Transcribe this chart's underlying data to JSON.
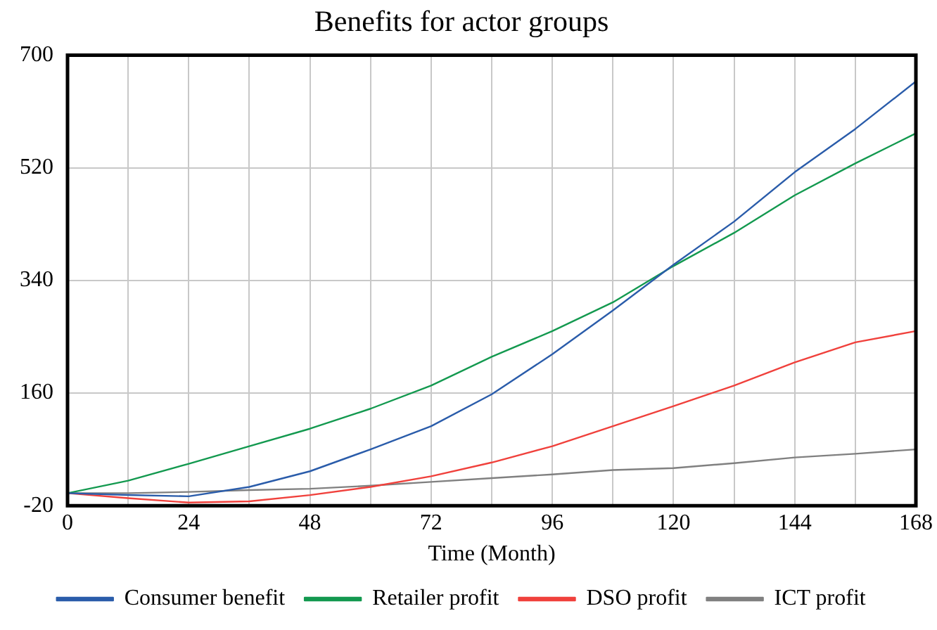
{
  "chart_data": {
    "type": "line",
    "title": "Benefits for actor groups",
    "xlabel": "Time (Month)",
    "x": [
      0,
      12,
      24,
      36,
      48,
      60,
      72,
      84,
      96,
      108,
      120,
      132,
      144,
      156,
      168
    ],
    "series": [
      {
        "name": "Consumer benefit",
        "color": "#2a5caa",
        "values": [
          0,
          -3,
          -5,
          10,
          35,
          70,
          107,
          158,
          222,
          292,
          365,
          434,
          513,
          582,
          658
        ]
      },
      {
        "name": "Retailer profit",
        "color": "#13994f",
        "values": [
          0,
          20,
          47,
          75,
          103,
          135,
          172,
          218,
          259,
          305,
          363,
          416,
          476,
          527,
          575
        ]
      },
      {
        "name": "DSO profit",
        "color": "#f0413c",
        "values": [
          0,
          -8,
          -15,
          -13,
          -3,
          10,
          27,
          49,
          75,
          107,
          139,
          172,
          209,
          241,
          259
        ]
      },
      {
        "name": "ICT profit",
        "color": "#808080",
        "values": [
          0,
          0,
          2,
          5,
          7,
          12,
          18,
          24,
          30,
          37,
          40,
          48,
          57,
          63,
          70
        ]
      }
    ],
    "xlim": [
      0,
      168
    ],
    "xticks": [
      0,
      {
        "value": 12,
        "label": null
      },
      24,
      {
        "value": 36,
        "label": null
      },
      48,
      {
        "value": 60,
        "label": null
      },
      72,
      {
        "value": 84,
        "label": null
      },
      96,
      {
        "value": 108,
        "label": null
      },
      120,
      {
        "value": 132,
        "label": null
      },
      144,
      {
        "value": 156,
        "label": null
      },
      168
    ],
    "ylim": [
      -20,
      700
    ],
    "yticks": [
      -20,
      160,
      340,
      520,
      700
    ],
    "grid": true,
    "legend": "bottom",
    "marker": "none",
    "line_style": "solid"
  }
}
